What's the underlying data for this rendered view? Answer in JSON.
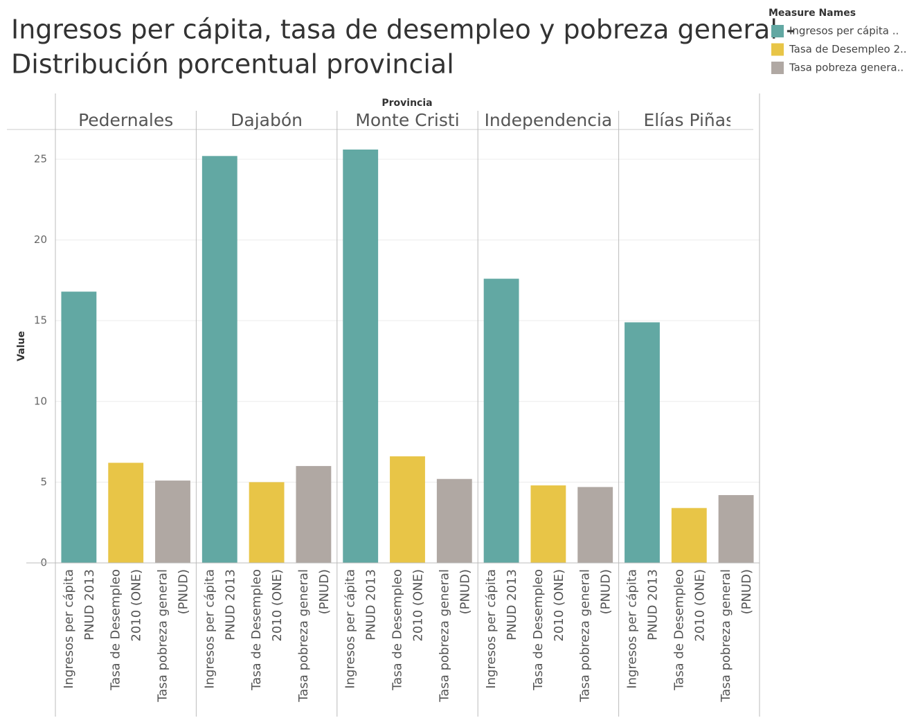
{
  "chart_data": {
    "type": "bar",
    "title": "Ingresos per cápita, tasa de desempleo y pobreza general -",
    "subtitle": "Distribución porcentual provincial",
    "facet_label": "Provincia",
    "y_label": "Value",
    "groups": [
      "Pedernales",
      "Dajabón",
      "Monte Cristi",
      "Independencia",
      "Elías Piñas"
    ],
    "series": [
      {
        "name": "Ingresos per cápita PNUD 2013",
        "color": "#62a8a3",
        "values": [
          16.8,
          25.2,
          25.6,
          17.6,
          14.9
        ]
      },
      {
        "name": "Tasa de Desempleo 2010 (ONE)",
        "color": "#e8c547",
        "values": [
          6.2,
          5.0,
          6.6,
          4.8,
          3.4
        ]
      },
      {
        "name": "Tasa pobreza general (PNUD)",
        "color": "#b0a8a3",
        "values": [
          5.1,
          6.0,
          5.2,
          4.7,
          4.2
        ]
      }
    ],
    "legend": {
      "title": "Measure Names",
      "labels": [
        "Ingresos per cápita ..",
        "Tasa de Desempleo 2..",
        "Tasa pobreza genera.."
      ],
      "position": "top-right"
    },
    "ylim": [
      0,
      26.8
    ],
    "yticks": [
      0,
      5,
      10,
      15,
      20,
      25
    ],
    "grid": true
  }
}
